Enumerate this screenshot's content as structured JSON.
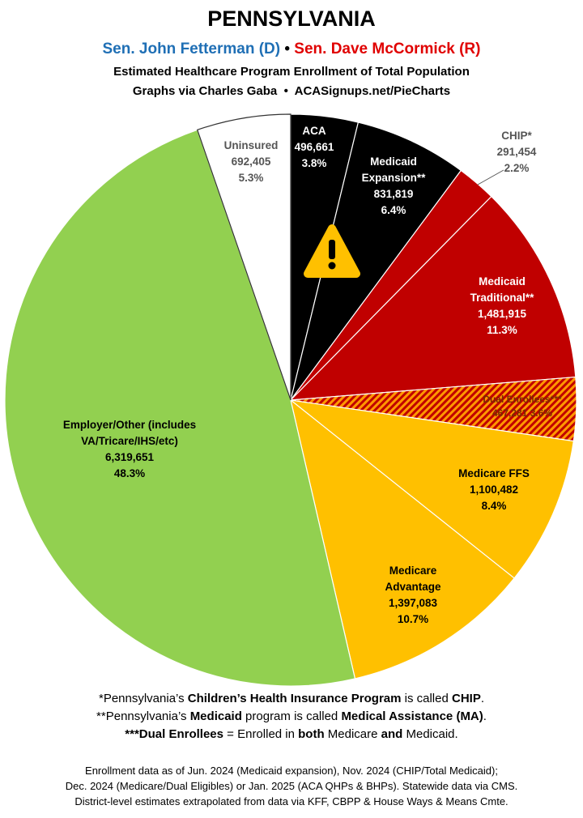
{
  "chart_data": {
    "type": "pie",
    "title": "PENNSYLVANIA",
    "senators": [
      "Sen. John Fetterman (D)",
      "Sen. Dave McCormick (R)"
    ],
    "senator_colors": [
      "#1f6fb5",
      "#e00000"
    ],
    "separator": "•",
    "subtitle": "Estimated Healthcare Program Enrollment of Total Population",
    "credit": "Graphs via Charles Gaba  •  ACASignups.net/PieCharts",
    "categories": [
      "ACA",
      "Medicaid Expansion**",
      "CHIP*",
      "Medicaid Traditional**",
      "Dual Enrollees***",
      "Medicare FFS",
      "Medicare Advantage",
      "Employer/Other (includes VA/Tricare/IHS/etc)",
      "Uninsured"
    ],
    "values": [
      496661,
      831819,
      291454,
      1481915,
      467281,
      1100482,
      1397083,
      6319651,
      692405
    ],
    "value_labels": [
      "496,661",
      "831,819",
      "291,454",
      "1,481,915",
      "467,281",
      "1,100,482",
      "1,397,083",
      "6,319,651",
      "692,405"
    ],
    "percent_labels": [
      "3.8%",
      "6.4%",
      "2.2%",
      "11.3%",
      "3.6%",
      "8.4%",
      "10.7%",
      "48.3%",
      "5.3%"
    ],
    "colors": [
      "#000000",
      "#000000",
      "#c00000",
      "#c00000",
      "#c00000",
      "#ffc000",
      "#ffc000",
      "#92d050",
      "#ffffff"
    ],
    "hatched_slices": [
      4
    ],
    "footnotes": [
      [
        "*Pennsylvania’s ",
        "Children’s Health Insurance Program",
        " is called ",
        "CHIP",
        "."
      ],
      [
        "**Pennsylvania’s ",
        "Medicaid",
        " program is called ",
        "Medical Assistance (MA)",
        "."
      ],
      [
        "",
        "***Dual Enrollees",
        " = Enrolled in ",
        "both",
        " Medicare ",
        "and",
        " Medicaid."
      ]
    ],
    "source": [
      "Enrollment data as of Jun. 2024 (Medicaid expansion), Nov. 2024 (CHIP/Total Medicaid);",
      "Dec. 2024 (Medicare/Dual Eligibles) or Jan. 2025 (ACA QHPs & BHPs). Statewide data via CMS.",
      "District-level estimates extrapolated from data via KFF, CBPP & House Ways & Means Cmte."
    ]
  }
}
